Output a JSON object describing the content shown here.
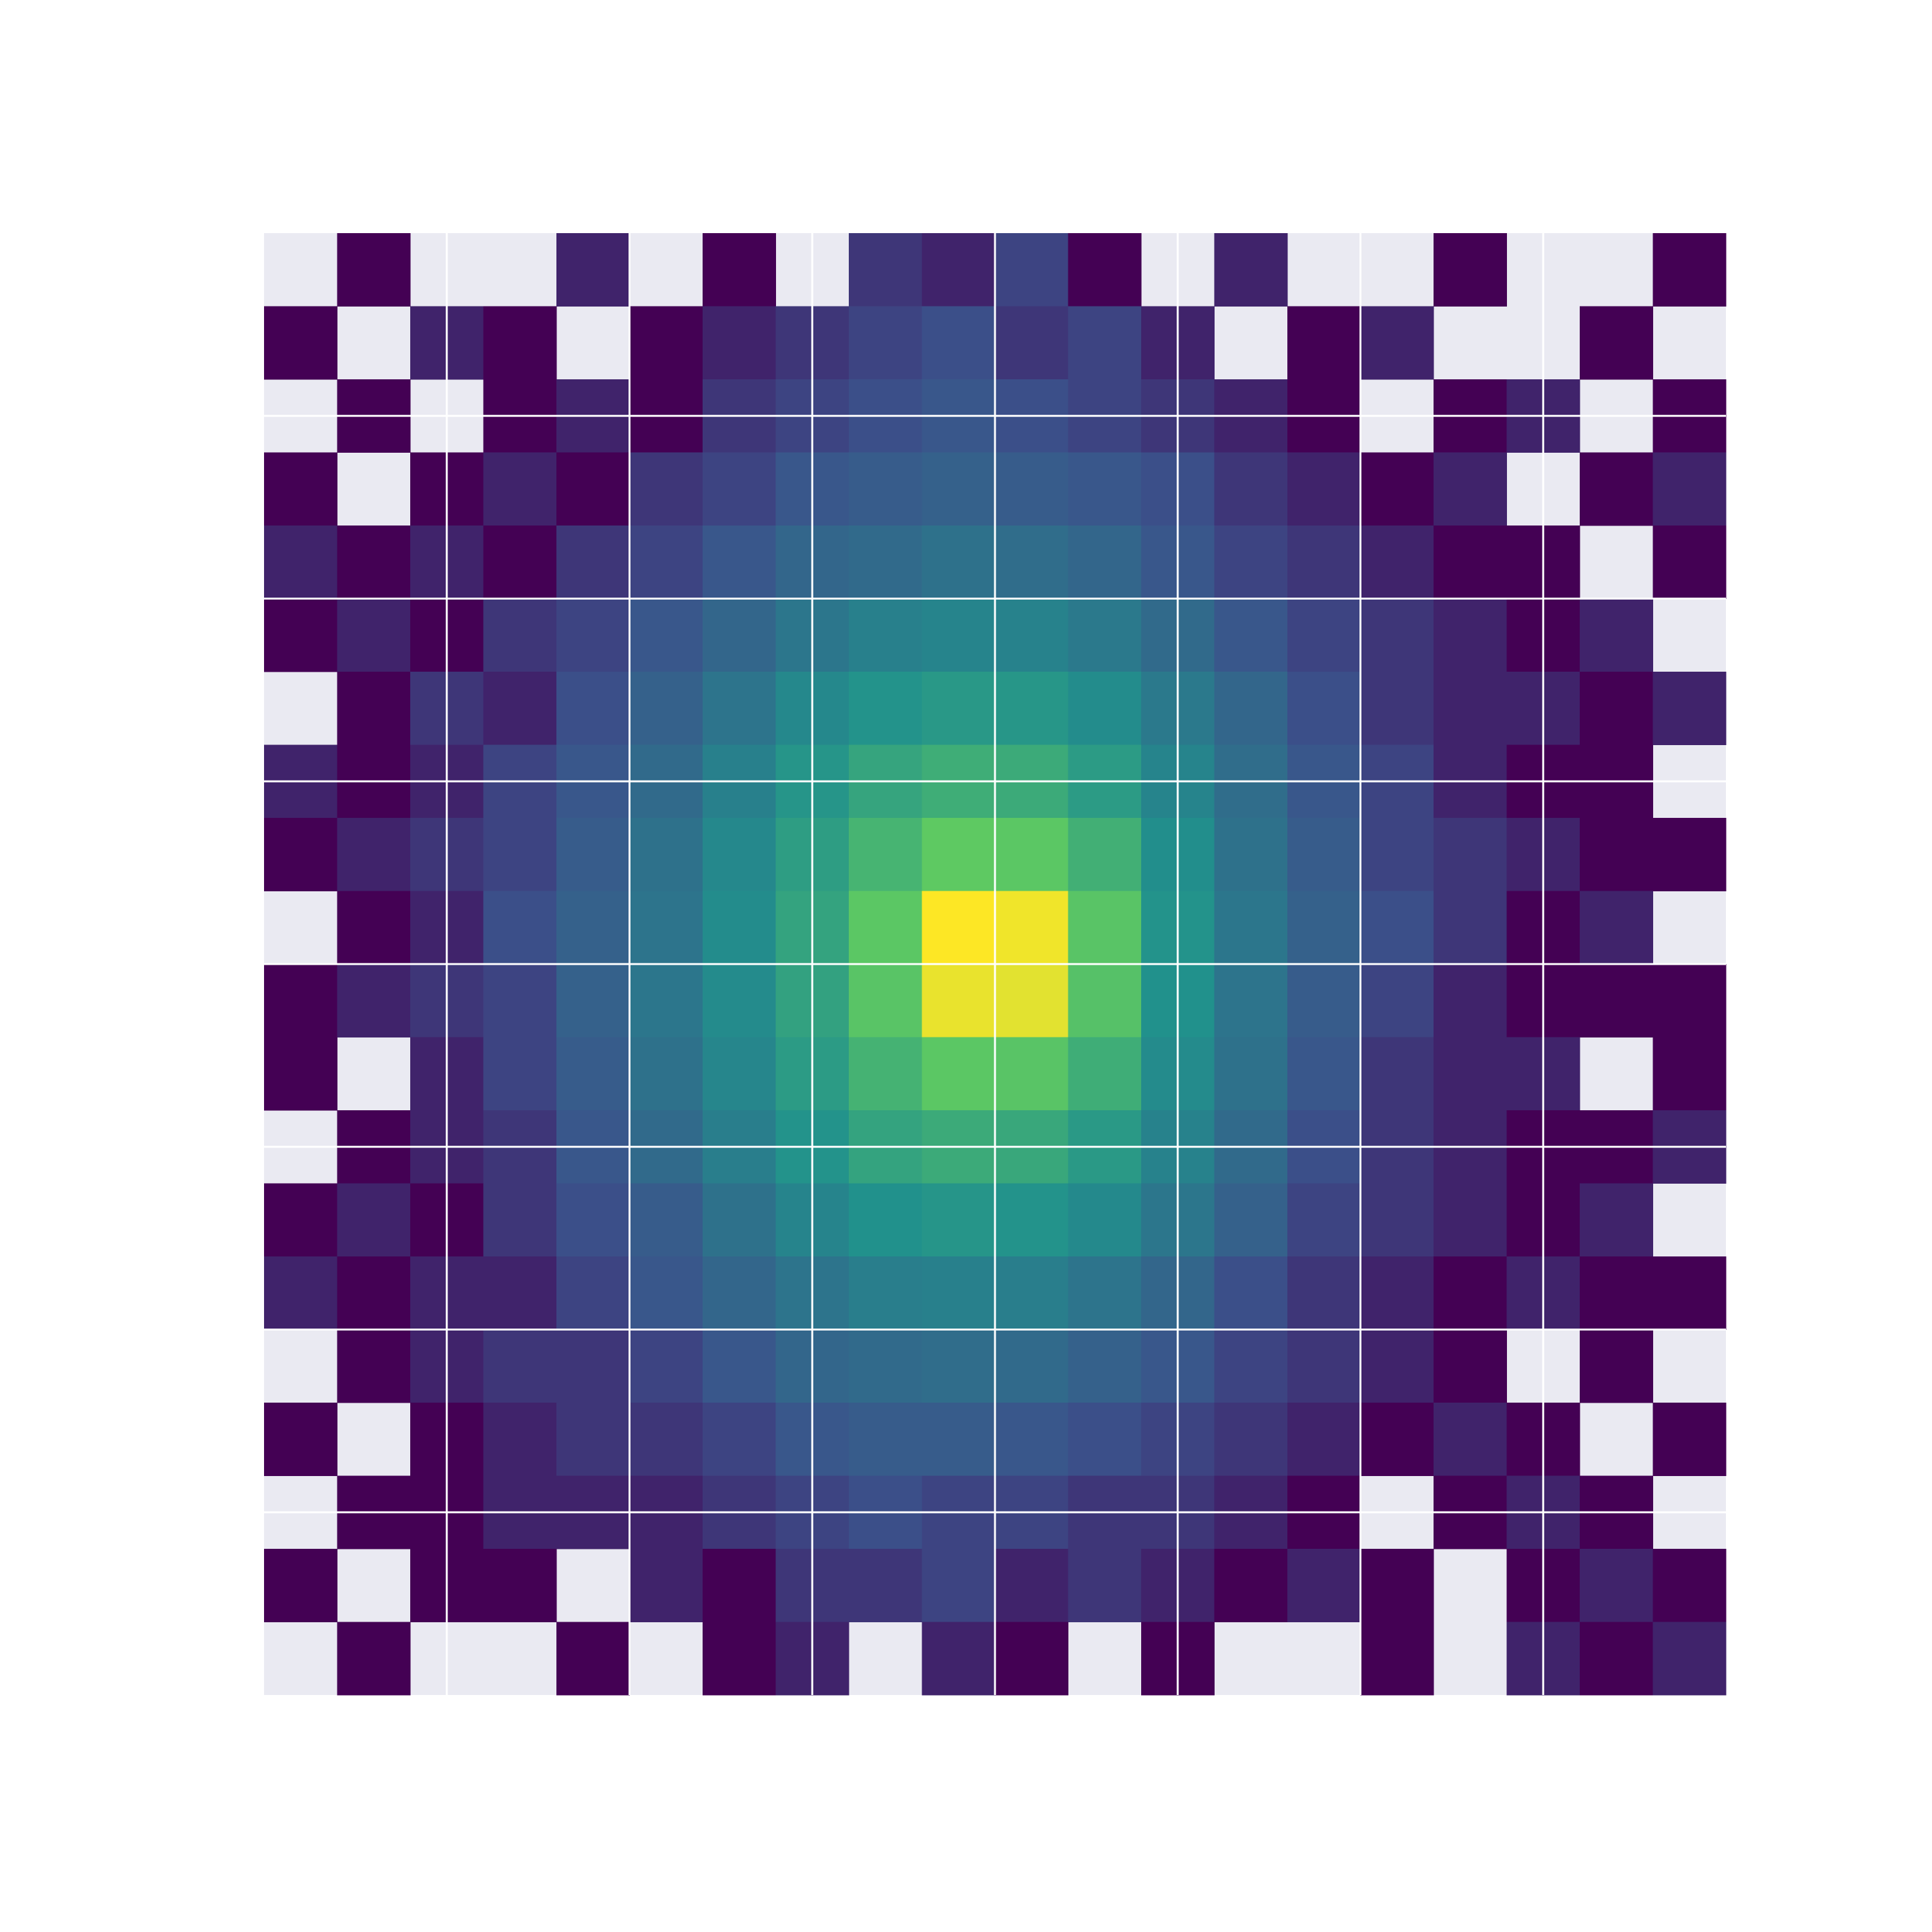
{
  "chart_data": {
    "type": "heatmap",
    "colormap": "viridis",
    "log": true,
    "clim": [
      1,
      800
    ],
    "background": "#eaeaf2",
    "grid": true,
    "grid_color": "#ffffff",
    "xlim": [
      -4,
      4
    ],
    "ylim": [
      -4,
      4
    ],
    "xticks": [
      -3,
      -2,
      -1,
      0,
      1,
      2,
      3
    ],
    "yticks": [
      -3,
      -2,
      -1,
      0,
      1,
      2,
      3
    ],
    "xbins": [
      -4,
      -3.6,
      -3.2,
      -2.8,
      -2.4,
      -2,
      -1.6,
      -1.2,
      -0.8,
      -0.4,
      0,
      0.4,
      0.8,
      1.2,
      1.6,
      2,
      2.4,
      2.8,
      3.2,
      3.6,
      4
    ],
    "ybins": [
      4,
      3.6,
      3.2,
      2.8,
      2.4,
      2,
      1.6,
      1.2,
      0.8,
      0.4,
      0,
      -0.4,
      -0.8,
      -1.2,
      -1.6,
      -2,
      -2.4,
      -2.8,
      -3.2,
      -3.6,
      -4
    ],
    "z": [
      [
        null,
        1,
        null,
        null,
        2,
        null,
        1,
        null,
        3,
        2,
        4,
        1,
        null,
        2,
        null,
        null,
        1,
        null,
        null,
        1
      ],
      [
        1,
        null,
        2,
        1,
        null,
        1,
        2,
        3,
        4,
        5,
        3,
        4,
        2,
        null,
        1,
        2,
        null,
        null,
        1,
        null
      ],
      [
        null,
        1,
        null,
        1,
        2,
        1,
        3,
        4,
        5,
        6,
        5,
        4,
        3,
        2,
        1,
        null,
        1,
        2,
        null,
        1
      ],
      [
        1,
        null,
        1,
        2,
        1,
        3,
        4,
        6,
        7,
        8,
        7,
        6,
        5,
        3,
        2,
        1,
        2,
        null,
        1,
        2
      ],
      [
        2,
        1,
        2,
        1,
        3,
        4,
        6,
        9,
        10,
        12,
        11,
        9,
        6,
        4,
        3,
        2,
        1,
        1,
        null,
        1
      ],
      [
        1,
        2,
        1,
        3,
        4,
        6,
        9,
        14,
        18,
        20,
        19,
        15,
        10,
        6,
        4,
        3,
        2,
        1,
        2,
        null
      ],
      [
        null,
        1,
        3,
        2,
        5,
        8,
        13,
        22,
        30,
        35,
        33,
        25,
        15,
        9,
        5,
        3,
        2,
        2,
        1,
        2
      ],
      [
        2,
        1,
        2,
        4,
        6,
        10,
        18,
        32,
        50,
        65,
        60,
        38,
        20,
        11,
        6,
        4,
        2,
        1,
        1,
        null
      ],
      [
        1,
        2,
        3,
        4,
        7,
        12,
        22,
        40,
        80,
        150,
        140,
        70,
        26,
        12,
        7,
        4,
        3,
        2,
        1,
        1
      ],
      [
        null,
        1,
        2,
        5,
        8,
        13,
        25,
        48,
        140,
        800,
        700,
        130,
        30,
        14,
        8,
        5,
        3,
        1,
        2,
        null
      ],
      [
        1,
        2,
        3,
        4,
        8,
        14,
        24,
        46,
        130,
        650,
        600,
        120,
        28,
        13,
        7,
        4,
        2,
        1,
        1,
        1
      ],
      [
        1,
        null,
        2,
        4,
        7,
        12,
        21,
        38,
        75,
        140,
        130,
        65,
        24,
        12,
        6,
        3,
        2,
        2,
        null,
        1
      ],
      [
        null,
        1,
        2,
        3,
        6,
        10,
        17,
        30,
        48,
        60,
        55,
        36,
        19,
        10,
        5,
        3,
        2,
        1,
        1,
        2
      ],
      [
        1,
        2,
        1,
        3,
        5,
        7,
        12,
        20,
        28,
        32,
        30,
        23,
        14,
        8,
        4,
        3,
        2,
        1,
        2,
        null
      ],
      [
        2,
        1,
        2,
        2,
        4,
        6,
        9,
        13,
        17,
        18,
        17,
        13,
        9,
        5,
        3,
        2,
        1,
        2,
        1,
        1
      ],
      [
        null,
        1,
        2,
        3,
        3,
        4,
        6,
        9,
        10,
        11,
        10,
        8,
        6,
        4,
        3,
        2,
        1,
        null,
        1,
        null
      ],
      [
        1,
        null,
        1,
        2,
        3,
        3,
        4,
        6,
        7,
        7,
        6,
        5,
        4,
        3,
        2,
        1,
        2,
        1,
        null,
        1
      ],
      [
        null,
        1,
        1,
        2,
        2,
        2,
        3,
        4,
        5,
        4,
        4,
        3,
        3,
        2,
        1,
        null,
        1,
        2,
        1,
        null
      ],
      [
        1,
        null,
        1,
        1,
        null,
        2,
        1,
        3,
        3,
        4,
        2,
        3,
        2,
        1,
        2,
        1,
        null,
        1,
        2,
        1
      ],
      [
        null,
        1,
        null,
        null,
        1,
        null,
        1,
        2,
        null,
        2,
        1,
        null,
        1,
        null,
        null,
        1,
        null,
        2,
        1,
        2
      ]
    ]
  }
}
